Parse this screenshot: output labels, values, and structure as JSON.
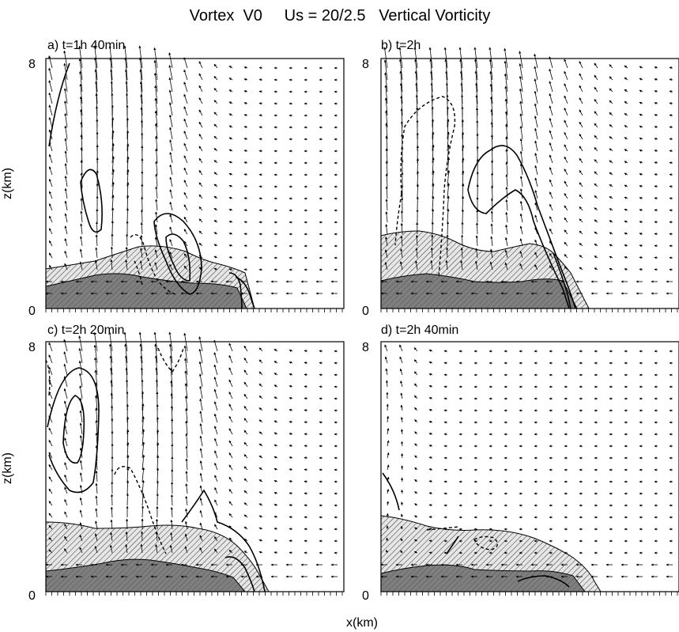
{
  "figure": {
    "title": "Vortex  V0     Us = 20/2.5   Vertical Vorticity",
    "xlabel": "x(km)",
    "ylabel_top": "z(km)",
    "ylabel_bottom": "z(km)"
  },
  "panels": [
    {
      "id": "a",
      "label": "a) t=1h 40min",
      "z_min": "0",
      "z_max": "8"
    },
    {
      "id": "b",
      "label": "b) t=2h",
      "z_min": "0",
      "z_max": "8"
    },
    {
      "id": "c",
      "label": "c) t=2h 20min",
      "z_min": "0",
      "z_max": "8"
    },
    {
      "id": "d",
      "label": "d) t=2h 40min",
      "z_min": "0",
      "z_max": "8"
    }
  ],
  "legend_encoding": {
    "positive_vorticity": "solid contour",
    "negative_vorticity": "dashed contour",
    "cold_pool_outer": "light hatched shading",
    "cold_pool_inner": "dark shading",
    "wind": "arrows"
  },
  "colors": {
    "ink": "#000000",
    "dark_shade": "#7f7f7f",
    "hatch": "#000000",
    "background": "#ffffff"
  }
}
